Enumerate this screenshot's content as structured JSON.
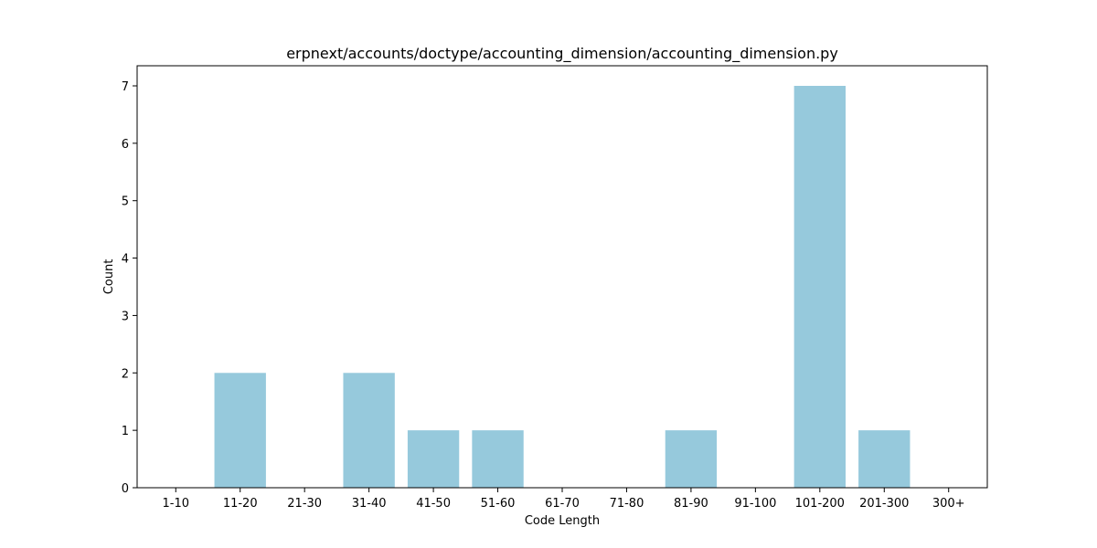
{
  "chart_data": {
    "type": "bar",
    "title": "erpnext/accounts/doctype/accounting_dimension/accounting_dimension.py",
    "xlabel": "Code Length",
    "ylabel": "Count",
    "categories": [
      "1-10",
      "11-20",
      "21-30",
      "31-40",
      "41-50",
      "51-60",
      "61-70",
      "71-80",
      "81-90",
      "91-100",
      "101-200",
      "201-300",
      "300+"
    ],
    "values": [
      0,
      2,
      0,
      2,
      1,
      1,
      0,
      0,
      1,
      0,
      7,
      1,
      0
    ],
    "yticks": [
      "0",
      "1",
      "2",
      "3",
      "4",
      "5",
      "6",
      "7"
    ],
    "ylim": [
      0,
      7.35
    ],
    "grid": false,
    "bar_color": "#96c9dc"
  }
}
